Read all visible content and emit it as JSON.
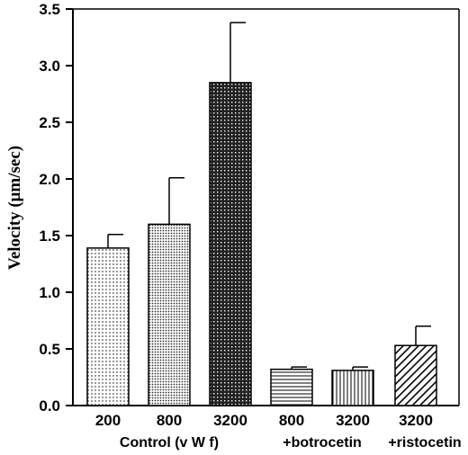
{
  "chart_data": {
    "type": "bar",
    "ylabel": "Velocity (μm/sec)",
    "ylim": [
      0,
      3.5
    ],
    "yticks": [
      "0.0",
      "0.5",
      "1.0",
      "1.5",
      "2.0",
      "2.5",
      "3.0",
      "3.5"
    ],
    "grid": false,
    "categories": [
      "200",
      "800",
      "3200",
      "800",
      "3200",
      "3200"
    ],
    "values": [
      1.39,
      1.6,
      2.85,
      0.32,
      0.31,
      0.53
    ],
    "errors": [
      0.12,
      0.41,
      0.53,
      0.02,
      0.03,
      0.17
    ],
    "patterns": [
      "fine-dots",
      "medium-dots",
      "dense-crosshatch",
      "horizontal-lines",
      "vertical-lines",
      "diagonal-lines"
    ],
    "group_labels": [
      {
        "text": "Control (v W f)",
        "categories": [
          0,
          1,
          2
        ]
      },
      {
        "text": "+botrocetin",
        "categories": [
          3,
          4
        ]
      },
      {
        "text": "+ristocetin",
        "categories": [
          5
        ]
      }
    ]
  }
}
